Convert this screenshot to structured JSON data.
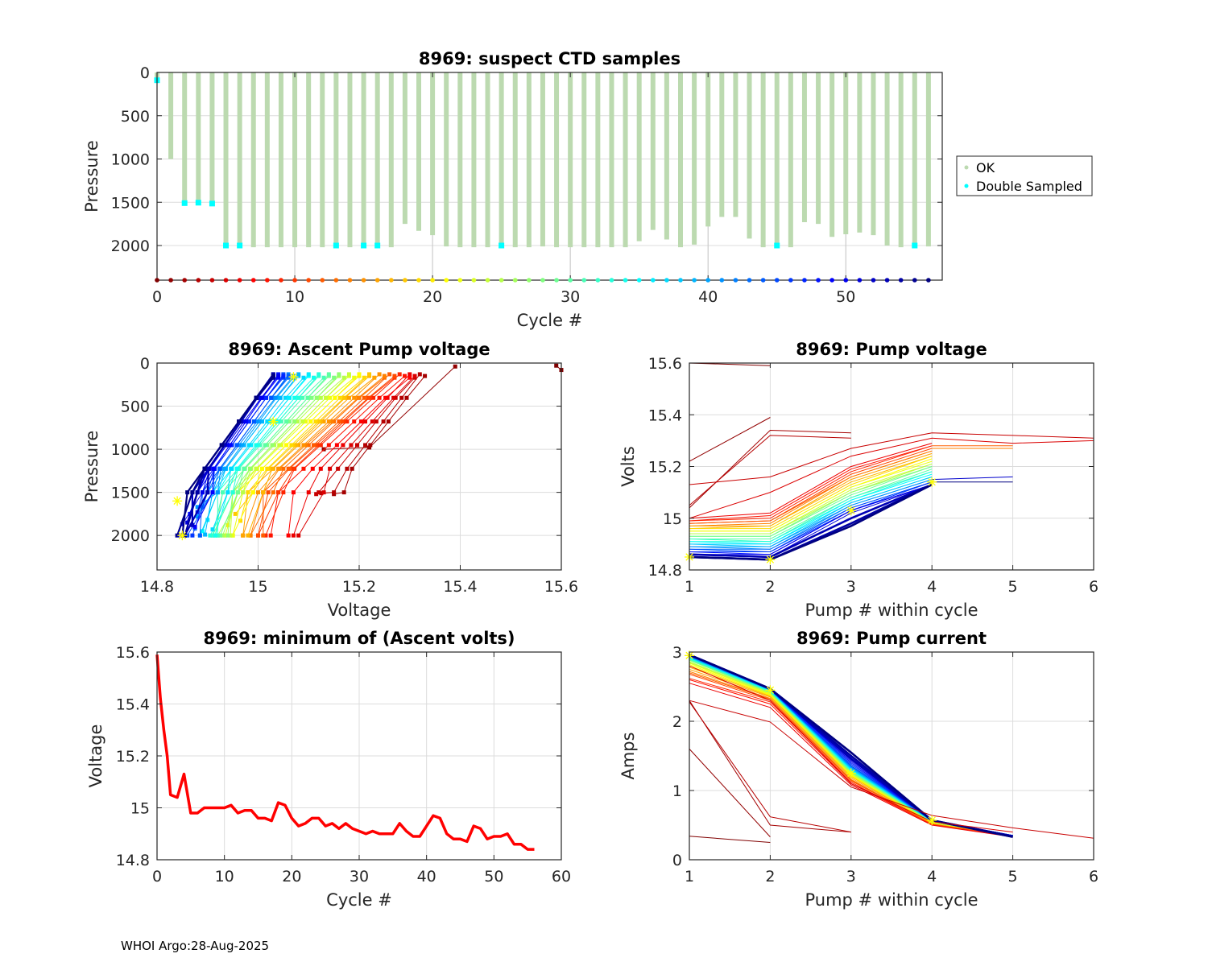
{
  "footer": "WHOI Argo:28-Aug-2025",
  "colormap": "jet-reversed",
  "colors": {
    "ok": "#bcdab0",
    "double_sampled": "#00ffff",
    "min_volts_line": "#ff0000",
    "marker_star": "#ffff00",
    "grid": "#dcdcdc",
    "axis": "#262626"
  },
  "chart_data": [
    {
      "id": "suspect",
      "type": "bar",
      "title": "8969: suspect CTD samples",
      "xlabel": "Cycle #",
      "ylabel": "Pressure",
      "xlim": [
        0,
        57
      ],
      "ylim": [
        0,
        2400
      ],
      "y_reversed": true,
      "xticks": [
        0,
        10,
        20,
        30,
        40,
        50
      ],
      "yticks": [
        0,
        500,
        1000,
        1500,
        2000
      ],
      "grid": true,
      "legend": {
        "placement": "outside-right",
        "entries": [
          "OK",
          "Double Sampled"
        ]
      },
      "cycles": [
        0,
        1,
        2,
        3,
        4,
        5,
        6,
        7,
        8,
        9,
        10,
        11,
        12,
        13,
        14,
        15,
        16,
        17,
        18,
        19,
        20,
        21,
        22,
        23,
        24,
        25,
        26,
        27,
        28,
        29,
        30,
        31,
        32,
        33,
        34,
        35,
        36,
        37,
        38,
        39,
        40,
        41,
        42,
        43,
        44,
        45,
        46,
        47,
        48,
        49,
        50,
        51,
        52,
        53,
        54,
        55,
        56
      ],
      "max_pressure": [
        100,
        1000,
        1520,
        1510,
        1520,
        2010,
        2010,
        2020,
        2020,
        2020,
        2020,
        2020,
        2020,
        2010,
        2020,
        2010,
        2010,
        2020,
        1750,
        1830,
        1880,
        2010,
        2020,
        2020,
        2020,
        2010,
        2020,
        2020,
        2010,
        2020,
        2020,
        2020,
        2020,
        2020,
        2020,
        1950,
        1820,
        1930,
        2020,
        1990,
        1780,
        1670,
        1670,
        1920,
        2020,
        2010,
        2020,
        1730,
        1750,
        1900,
        1870,
        1850,
        1880,
        2000,
        2020,
        2010,
        2010
      ],
      "double_sampled": [
        {
          "cycle": 0,
          "pressure": 90
        },
        {
          "cycle": 2,
          "pressure": 1510
        },
        {
          "cycle": 3,
          "pressure": 1505
        },
        {
          "cycle": 4,
          "pressure": 1515
        },
        {
          "cycle": 5,
          "pressure": 2000
        },
        {
          "cycle": 6,
          "pressure": 2000
        },
        {
          "cycle": 13,
          "pressure": 2000
        },
        {
          "cycle": 15,
          "pressure": 2000
        },
        {
          "cycle": 16,
          "pressure": 2000
        },
        {
          "cycle": 25,
          "pressure": 2000
        },
        {
          "cycle": 45,
          "pressure": 2000
        },
        {
          "cycle": 55,
          "pressure": 2000
        }
      ],
      "stem_cycles": [
        10,
        20,
        30,
        40,
        50
      ]
    },
    {
      "id": "ascent",
      "type": "line",
      "title": "8969: Ascent Pump voltage",
      "xlabel": "Voltage",
      "ylabel": "Pressure",
      "xlim": [
        14.8,
        15.6
      ],
      "ylim": [
        0,
        2400
      ],
      "y_reversed": true,
      "xticks": [
        14.8,
        15.0,
        15.2,
        15.4,
        15.6
      ],
      "xticklabels": [
        "14.8",
        "15",
        "15.2",
        "15.4",
        "15.6"
      ],
      "yticks": [
        0,
        500,
        1000,
        1500,
        2000
      ],
      "grid": true,
      "series_note": "one line per cycle; points at (voltage, pressure) from park depth to surface",
      "per_cycle": {
        "v_deep": [
          15.14,
          15.16,
          15.13,
          15.12,
          15.1,
          15.08,
          15.06,
          15.04,
          15.02,
          15.0,
          15.0,
          14.99,
          14.99,
          14.98,
          14.97,
          14.97,
          14.96,
          14.96,
          14.95,
          14.95,
          14.94,
          14.94,
          14.93,
          14.93,
          14.93,
          14.92,
          14.92,
          14.92,
          14.91,
          14.91,
          14.91,
          14.9,
          14.9,
          14.9,
          14.9,
          14.89,
          14.89,
          14.89,
          14.88,
          14.88,
          14.88,
          14.87,
          14.87,
          14.87,
          14.87,
          14.86,
          14.86,
          14.86,
          14.86,
          14.86,
          14.85,
          14.85,
          14.85,
          14.85,
          14.84,
          14.84,
          14.84
        ],
        "v_surface": [
          15.6,
          15.39,
          15.33,
          15.32,
          15.31,
          15.31,
          15.3,
          15.3,
          15.29,
          15.28,
          15.27,
          15.27,
          15.26,
          15.25,
          15.25,
          15.24,
          15.23,
          15.22,
          15.22,
          15.21,
          15.2,
          15.2,
          15.19,
          15.18,
          15.18,
          15.17,
          15.16,
          15.16,
          15.15,
          15.14,
          15.14,
          15.13,
          15.12,
          15.12,
          15.11,
          15.1,
          15.1,
          15.09,
          15.08,
          15.08,
          15.07,
          15.07,
          15.06,
          15.06,
          15.06,
          15.05,
          15.05,
          15.05,
          15.04,
          15.04,
          15.04,
          15.03,
          15.03,
          15.03,
          15.03,
          15.03,
          15.03
        ]
      },
      "markers": [
        {
          "voltage": 14.84,
          "pressure": 1600
        },
        {
          "voltage": 14.85,
          "pressure": 2000
        },
        {
          "voltage": 15.03,
          "pressure": 680
        },
        {
          "voltage": 15.07,
          "pressure": 160
        }
      ]
    },
    {
      "id": "pumpv",
      "type": "line",
      "title": "8969: Pump voltage",
      "xlabel": "Pump # within cycle",
      "ylabel": "Volts",
      "xlim": [
        1,
        6
      ],
      "ylim": [
        14.8,
        15.6
      ],
      "xticks": [
        1,
        2,
        3,
        4,
        5,
        6
      ],
      "yticks": [
        14.8,
        15.0,
        15.2,
        15.4,
        15.6
      ],
      "yticklabels": [
        "14.8",
        "15",
        "15.2",
        "15.4",
        "15.6"
      ],
      "grid": true,
      "special_series": [
        {
          "cycle": 0,
          "x": [
            1,
            2
          ],
          "y": [
            15.6,
            15.59
          ]
        },
        {
          "cycle": 1,
          "x": [
            1,
            2
          ],
          "y": [
            15.22,
            15.39
          ]
        },
        {
          "cycle": 2,
          "x": [
            1,
            2,
            3
          ],
          "y": [
            15.04,
            15.34,
            15.33
          ]
        },
        {
          "cycle": 3,
          "x": [
            1,
            2,
            3
          ],
          "y": [
            15.05,
            15.32,
            15.31
          ]
        },
        {
          "cycle": 4,
          "x": [
            1,
            2,
            3,
            4,
            5,
            6
          ],
          "y": [
            15.13,
            15.16,
            15.27,
            15.33,
            15.32,
            15.31
          ]
        },
        {
          "cycle": 5,
          "x": [
            1,
            2,
            3,
            4,
            5,
            6
          ],
          "y": [
            15.0,
            15.1,
            15.24,
            15.31,
            15.29,
            15.3
          ]
        }
      ],
      "bundle": {
        "p1": [
          15.0,
          14.99,
          14.99,
          14.98,
          14.98,
          14.97,
          14.97,
          14.96,
          14.96,
          14.95,
          14.95,
          14.94,
          14.94,
          14.93,
          14.93,
          14.92,
          14.92,
          14.91,
          14.91,
          14.9,
          14.9,
          14.89,
          14.89,
          14.88,
          14.88,
          14.87,
          14.87,
          14.86,
          14.86,
          14.86,
          14.85,
          14.85
        ],
        "p2": [
          15.02,
          15.01,
          15.0,
          14.99,
          14.99,
          14.98,
          14.97,
          14.97,
          14.96,
          14.95,
          14.95,
          14.94,
          14.94,
          14.93,
          14.93,
          14.92,
          14.91,
          14.91,
          14.9,
          14.9,
          14.89,
          14.89,
          14.88,
          14.88,
          14.87,
          14.87,
          14.86,
          14.86,
          14.85,
          14.85,
          14.84,
          14.84
        ],
        "p3": [
          15.2,
          15.19,
          15.18,
          15.17,
          15.16,
          15.16,
          15.15,
          15.14,
          15.13,
          15.12,
          15.12,
          15.11,
          15.1,
          15.1,
          15.09,
          15.08,
          15.08,
          15.07,
          15.07,
          15.06,
          15.06,
          15.05,
          15.05,
          15.04,
          15.04,
          15.03,
          15.03,
          15.03,
          15.02,
          15.0,
          14.98,
          14.97
        ],
        "p4": [
          15.29,
          15.28,
          15.28,
          15.27,
          15.26,
          15.26,
          15.25,
          15.24,
          15.24,
          15.23,
          15.22,
          15.21,
          15.21,
          15.2,
          15.2,
          15.19,
          15.18,
          15.18,
          15.17,
          15.16,
          15.16,
          15.15,
          15.15,
          15.14,
          15.14,
          15.14,
          15.13,
          15.13,
          15.13,
          15.13,
          15.13,
          15.13
        ]
      },
      "extras": [
        {
          "x": [
            4,
            5
          ],
          "y": [
            15.15,
            15.16
          ],
          "color": "#0000cc"
        },
        {
          "x": [
            4,
            5
          ],
          "y": [
            15.14,
            15.14
          ],
          "color": "#000080"
        },
        {
          "x": [
            4,
            5
          ],
          "y": [
            15.27,
            15.27
          ],
          "color": "#ff8000"
        },
        {
          "x": [
            4,
            5
          ],
          "y": [
            15.28,
            15.28
          ],
          "color": "#ff6000"
        }
      ],
      "markers": [
        {
          "x": 1,
          "y": 14.85
        },
        {
          "x": 2,
          "y": 14.84
        },
        {
          "x": 3,
          "y": 15.03
        },
        {
          "x": 4,
          "y": 15.14
        }
      ]
    },
    {
      "id": "minv",
      "type": "line",
      "title": "8969: minimum of (Ascent volts)",
      "xlabel": "Cycle #",
      "ylabel": "Voltage",
      "xlim": [
        0,
        60
      ],
      "ylim": [
        14.8,
        15.6
      ],
      "xticks": [
        0,
        10,
        20,
        30,
        40,
        50,
        60
      ],
      "yticks": [
        14.8,
        15.0,
        15.2,
        15.4,
        15.6
      ],
      "yticklabels": [
        "14.8",
        "15",
        "15.2",
        "15.4",
        "15.6"
      ],
      "grid": true,
      "x": [
        0,
        0.5,
        1,
        1.5,
        2,
        3,
        4,
        5,
        6,
        7,
        8,
        9,
        10,
        11,
        12,
        13,
        14,
        15,
        16,
        17,
        18,
        19,
        20,
        21,
        22,
        23,
        24,
        25,
        26,
        27,
        28,
        29,
        30,
        31,
        32,
        33,
        34,
        35,
        36,
        37,
        38,
        39,
        40,
        41,
        42,
        43,
        44,
        45,
        46,
        47,
        48,
        49,
        50,
        51,
        52,
        53,
        54,
        55,
        56
      ],
      "y": [
        15.59,
        15.42,
        15.3,
        15.2,
        15.05,
        15.04,
        15.13,
        14.98,
        14.98,
        15.0,
        15.0,
        15.0,
        15.0,
        15.01,
        14.98,
        14.99,
        14.99,
        14.96,
        14.96,
        14.95,
        15.02,
        15.01,
        14.96,
        14.93,
        14.94,
        14.96,
        14.96,
        14.93,
        14.94,
        14.92,
        14.94,
        14.92,
        14.91,
        14.9,
        14.91,
        14.9,
        14.9,
        14.9,
        14.94,
        14.91,
        14.89,
        14.89,
        14.93,
        14.97,
        14.96,
        14.9,
        14.88,
        14.88,
        14.87,
        14.93,
        14.92,
        14.88,
        14.89,
        14.89,
        14.9,
        14.86,
        14.86,
        14.84,
        14.84
      ]
    },
    {
      "id": "pumpc",
      "type": "line",
      "title": "8969: Pump current",
      "xlabel": "Pump # within cycle",
      "ylabel": "Amps",
      "xlim": [
        1,
        6
      ],
      "ylim": [
        0,
        3
      ],
      "xticks": [
        1,
        2,
        3,
        4,
        5,
        6
      ],
      "yticks": [
        0,
        1,
        2,
        3
      ],
      "grid": true,
      "special_series": [
        {
          "cycle": 0,
          "x": [
            1,
            2
          ],
          "y": [
            0.34,
            0.25
          ]
        },
        {
          "cycle": 1,
          "x": [
            1,
            2
          ],
          "y": [
            1.6,
            0.33
          ]
        },
        {
          "cycle": 2,
          "x": [
            1,
            2,
            3
          ],
          "y": [
            2.3,
            0.5,
            0.4
          ]
        },
        {
          "cycle": 3,
          "x": [
            1,
            2,
            3
          ],
          "y": [
            2.28,
            0.62,
            0.4
          ]
        },
        {
          "cycle": 4,
          "x": [
            1,
            2,
            3,
            4,
            5,
            6
          ],
          "y": [
            2.3,
            1.99,
            1.05,
            0.64,
            0.46,
            0.31
          ]
        },
        {
          "cycle": 5,
          "x": [
            1,
            2,
            3,
            4,
            5
          ],
          "y": [
            2.8,
            2.3,
            1.1,
            0.55,
            0.4
          ]
        }
      ],
      "bundle": {
        "p1": [
          2.55,
          2.6,
          2.62,
          2.68,
          2.7,
          2.72,
          2.75,
          2.78,
          2.8,
          2.82,
          2.84,
          2.85,
          2.86,
          2.88,
          2.89,
          2.9,
          2.9,
          2.91,
          2.92,
          2.92,
          2.93,
          2.93,
          2.94,
          2.94,
          2.95,
          2.95,
          2.95,
          2.96,
          2.96,
          2.96,
          2.96,
          2.96
        ],
        "p2": [
          2.2,
          2.25,
          2.28,
          2.3,
          2.32,
          2.33,
          2.35,
          2.36,
          2.37,
          2.38,
          2.39,
          2.4,
          2.41,
          2.42,
          2.42,
          2.43,
          2.43,
          2.44,
          2.44,
          2.45,
          2.45,
          2.45,
          2.46,
          2.46,
          2.46,
          2.46,
          2.47,
          2.47,
          2.47,
          2.47,
          2.47,
          2.47
        ],
        "p3": [
          1.08,
          1.1,
          1.12,
          1.14,
          1.15,
          1.16,
          1.18,
          1.2,
          1.21,
          1.22,
          1.23,
          1.24,
          1.25,
          1.26,
          1.27,
          1.28,
          1.29,
          1.3,
          1.3,
          1.31,
          1.32,
          1.33,
          1.34,
          1.35,
          1.36,
          1.38,
          1.4,
          1.42,
          1.44,
          1.46,
          1.5,
          1.55
        ],
        "p4": [
          0.5,
          0.51,
          0.51,
          0.52,
          0.52,
          0.52,
          0.53,
          0.53,
          0.53,
          0.54,
          0.54,
          0.54,
          0.55,
          0.55,
          0.55,
          0.56,
          0.56,
          0.56,
          0.56,
          0.56,
          0.56,
          0.57,
          0.57,
          0.57,
          0.57,
          0.57,
          0.57,
          0.57,
          0.57,
          0.57,
          0.57,
          0.57
        ],
        "p5": [
          0.33,
          0.34,
          0.34,
          0.35,
          0.35,
          0.35,
          0.35,
          0.35,
          0.35,
          0.35,
          0.35,
          0.35,
          0.35,
          0.35,
          0.35,
          0.35,
          0.35,
          0.35,
          0.35,
          0.35,
          0.35,
          0.35,
          0.35,
          0.35,
          0.35,
          0.35,
          0.35,
          0.34,
          0.34,
          0.34,
          0.33,
          0.33
        ]
      },
      "markers": [
        {
          "x": 1,
          "y": 2.95
        },
        {
          "x": 2,
          "y": 2.45
        },
        {
          "x": 3,
          "y": 1.25
        },
        {
          "x": 4,
          "y": 0.57
        }
      ]
    }
  ]
}
